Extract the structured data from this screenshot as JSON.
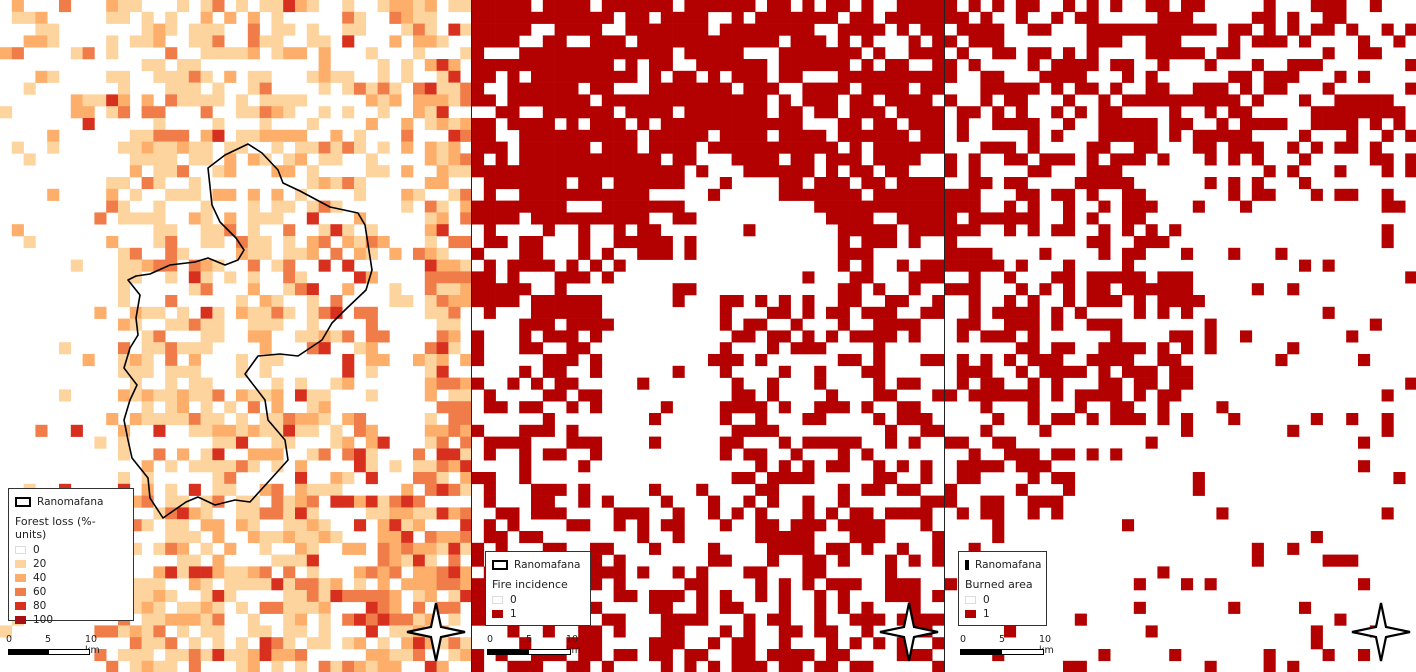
{
  "maps": [
    {
      "id": "forest-loss",
      "legend": {
        "boundary_label": "Ranomafana",
        "title": "Forest loss (%-units)",
        "classes": [
          {
            "label": "0",
            "color": "#ffffff"
          },
          {
            "label": "20",
            "color": "#fdd49e"
          },
          {
            "label": "40",
            "color": "#fdae6b"
          },
          {
            "label": "60",
            "color": "#f07c4a"
          },
          {
            "label": "80",
            "color": "#d7301f"
          },
          {
            "label": "100",
            "color": "#a50f15"
          }
        ]
      },
      "scale": {
        "labels": [
          "0",
          "5",
          "10 km"
        ]
      }
    },
    {
      "id": "fire-incidence",
      "legend": {
        "boundary_label": "Ranomafana",
        "title": "Fire incidence",
        "classes": [
          {
            "label": "0",
            "color": "#ffffff"
          },
          {
            "label": "1",
            "color": "#b30000"
          }
        ]
      },
      "scale": {
        "labels": [
          "0",
          "5",
          "10 km"
        ]
      }
    },
    {
      "id": "burned-area",
      "legend": {
        "boundary_label": "Ranomafana",
        "title": "Burned area",
        "classes": [
          {
            "label": "0",
            "color": "#ffffff"
          },
          {
            "label": "1",
            "color": "#b30000"
          }
        ]
      },
      "scale": {
        "labels": [
          "0",
          "5",
          "10 km"
        ]
      }
    }
  ],
  "colors": {
    "boundary": "#000000",
    "fire": "#b30000"
  },
  "icons": {
    "north_arrow": "compass-star-icon"
  }
}
